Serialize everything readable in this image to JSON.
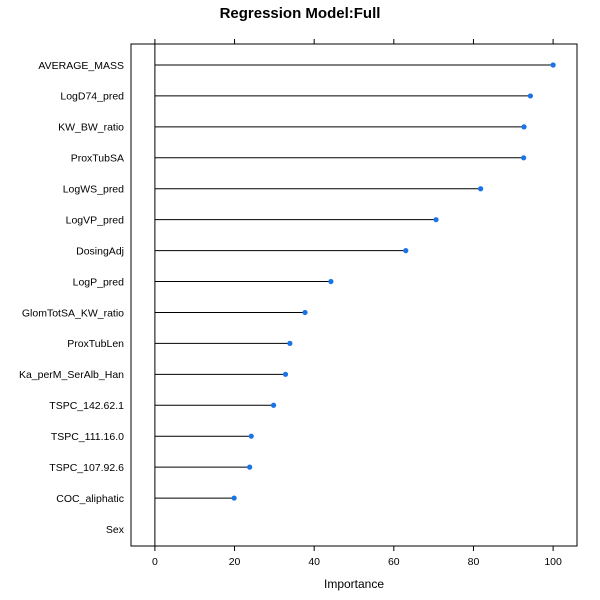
{
  "chart_data": {
    "type": "dot",
    "title": "Regression Model:Full",
    "xlabel": "Importance",
    "ylabel": "",
    "xlim": [
      -6,
      106
    ],
    "xticks": [
      0,
      20,
      40,
      60,
      80,
      100
    ],
    "xtick_labels": [
      "0",
      "20",
      "40",
      "60",
      "80",
      "100"
    ],
    "grid": false,
    "point_color": "#1a73e8",
    "categories": [
      "AVERAGE_MASS",
      "LogD74_pred",
      "KW_BW_ratio",
      "ProxTubSA",
      "LogWS_pred",
      "LogVP_pred",
      "DosingAdj",
      "LogP_pred",
      "GlomTotSA_KW_ratio",
      "ProxTubLen",
      "Ka_perM_SerAlb_Han",
      "TSPC_142.62.1",
      "TSPC_111.16.0",
      "TSPC_107.92.6",
      "COC_aliphatic",
      "Sex"
    ],
    "values": [
      100,
      94.3,
      92.7,
      92.6,
      81.8,
      70.6,
      63.0,
      44.2,
      37.7,
      33.9,
      32.8,
      29.8,
      24.2,
      23.8,
      19.9,
      0
    ]
  }
}
